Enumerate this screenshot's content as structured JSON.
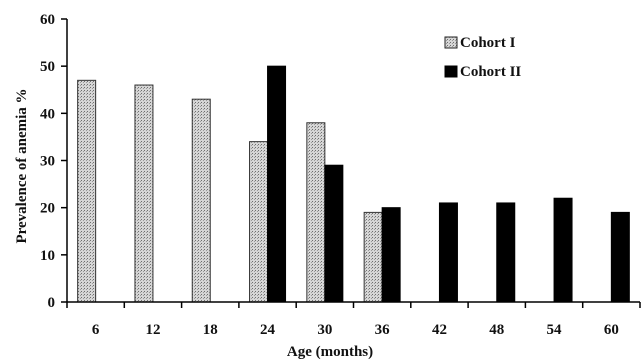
{
  "chart_data": {
    "type": "bar",
    "title": "",
    "xlabel": "Age (months)",
    "ylabel": "Prevalence of anemia %",
    "ylim": [
      0,
      60
    ],
    "yticks": [
      "0",
      "10",
      "20",
      "30",
      "40",
      "50",
      "60"
    ],
    "categories": [
      "6",
      "12",
      "18",
      "24",
      "30",
      "36",
      "42",
      "48",
      "54",
      "60"
    ],
    "series": [
      {
        "name": "Cohort I",
        "style": "dotted-gray",
        "values": [
          47,
          46,
          43,
          34,
          38,
          19,
          null,
          null,
          null,
          null
        ]
      },
      {
        "name": "Cohort II",
        "style": "solid-black",
        "values": [
          null,
          null,
          null,
          50,
          29,
          20,
          21,
          21,
          22,
          19
        ]
      }
    ],
    "legend_position": "top-right",
    "grid": false
  }
}
